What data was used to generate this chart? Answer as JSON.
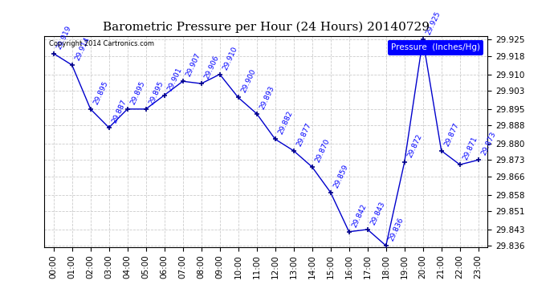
{
  "title": "Barometric Pressure per Hour (24 Hours) 20140729",
  "copyright": "Copyright 2014 Cartronics.com",
  "legend_label": "Pressure  (Inches/Hg)",
  "hours": [
    "00:00",
    "01:00",
    "02:00",
    "03:00",
    "04:00",
    "05:00",
    "06:00",
    "07:00",
    "08:00",
    "09:00",
    "10:00",
    "11:00",
    "12:00",
    "13:00",
    "14:00",
    "15:00",
    "16:00",
    "17:00",
    "18:00",
    "19:00",
    "20:00",
    "21:00",
    "22:00",
    "23:00"
  ],
  "values": [
    29.919,
    29.914,
    29.895,
    29.887,
    29.895,
    29.895,
    29.901,
    29.907,
    29.906,
    29.91,
    29.9,
    29.893,
    29.882,
    29.877,
    29.87,
    29.859,
    29.842,
    29.843,
    29.836,
    29.872,
    29.925,
    29.877,
    29.871,
    29.873
  ],
  "ylim_min": 29.8355,
  "ylim_max": 29.9265,
  "line_color": "#0000cc",
  "marker_color": "#000088",
  "bg_color": "#ffffff",
  "grid_color": "#cccccc",
  "title_fontsize": 11,
  "tick_fontsize": 7.5,
  "yticks": [
    29.836,
    29.843,
    29.851,
    29.858,
    29.866,
    29.873,
    29.88,
    29.888,
    29.895,
    29.903,
    29.91,
    29.918,
    29.925
  ]
}
